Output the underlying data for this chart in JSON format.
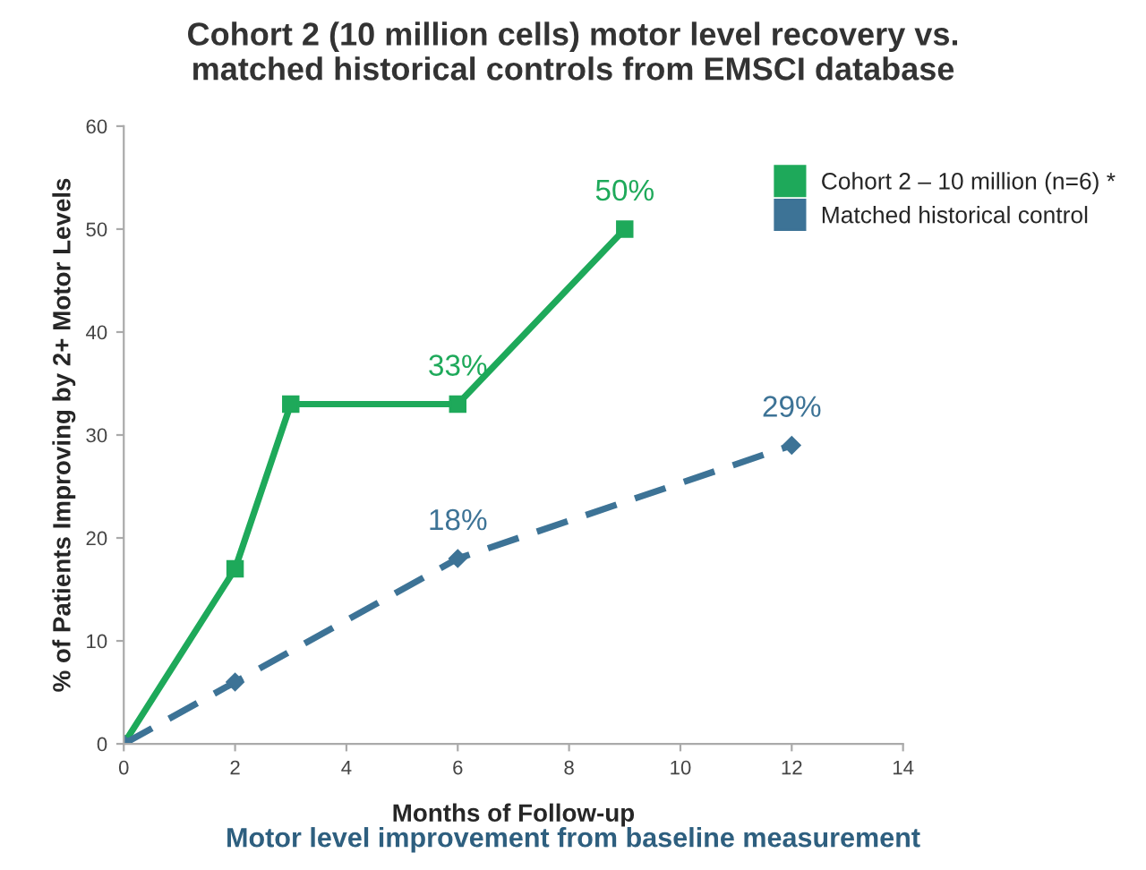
{
  "chart_data": {
    "type": "line",
    "title": "Cohort 2 (10 million cells) motor level recovery vs.\nmatched historical controls from EMSCI database",
    "xlabel": "Months of Follow-up",
    "ylabel": "% of Patients Improving by 2+ Motor Levels",
    "annotations": [
      "Motor level improvement from baseline measurement"
    ],
    "series": [
      {
        "name": "Cohort 2 – 10 million (n=6) *",
        "color": "#1ea95a",
        "x": [
          0,
          2,
          3,
          6,
          9
        ],
        "values": [
          0,
          17,
          33,
          33,
          50
        ],
        "value_labels": [
          null,
          null,
          null,
          "33%",
          "50%"
        ],
        "marker": "square",
        "line_style": "solid"
      },
      {
        "name": "Matched historical control",
        "color": "#3d7396",
        "x": [
          0,
          2,
          6,
          12
        ],
        "values": [
          0,
          6,
          18,
          29
        ],
        "value_labels": [
          null,
          null,
          "18%",
          "29%"
        ],
        "marker": "diamond",
        "line_style": "dashed"
      }
    ],
    "xlim": [
      0,
      14
    ],
    "xticks": [
      0,
      2,
      4,
      6,
      8,
      10,
      12,
      14
    ],
    "ylim": [
      0,
      60
    ],
    "yticks": [
      0,
      10,
      20,
      30,
      40,
      50,
      60
    ],
    "grid": false,
    "legend": "top right"
  }
}
